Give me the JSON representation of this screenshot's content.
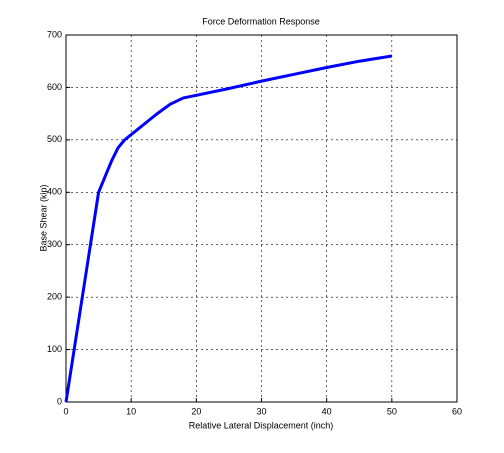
{
  "chart_data": {
    "type": "line",
    "title": "Force Deformation Response",
    "x_label": "Relative Lateral Displacement (inch)",
    "y_label": "Base Shear (kip)",
    "x": [
      0,
      1,
      2,
      3,
      4,
      5,
      6,
      7,
      8,
      9,
      10,
      12,
      14,
      16,
      18,
      20,
      25,
      30,
      35,
      40,
      45,
      50
    ],
    "series": [
      {
        "color": "#0000ff",
        "values": [
          0,
          80,
          160,
          240,
          320,
          400,
          430,
          460,
          485,
          500,
          510,
          530,
          550,
          568,
          580,
          585,
          598,
          612,
          625,
          638,
          650,
          660
        ]
      }
    ],
    "xlim": [
      0,
      60
    ],
    "xticks": [
      0,
      10,
      20,
      30,
      40,
      50,
      60
    ],
    "ylim": [
      0,
      700
    ],
    "yticks": [
      0,
      100,
      200,
      300,
      400,
      500,
      600,
      700
    ],
    "grid": true
  }
}
